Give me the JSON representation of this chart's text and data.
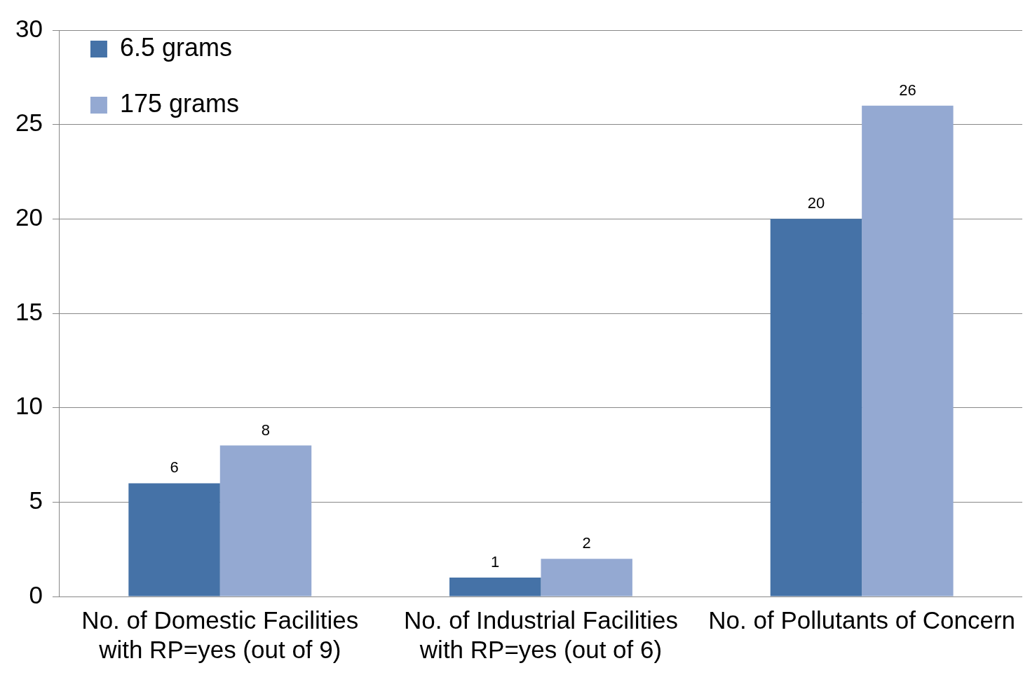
{
  "chart_data": {
    "type": "bar",
    "categories": [
      "No. of Domestic Facilities with RP=yes (out of 9)",
      "No. of Industrial Facilities with RP=yes (out of 6)",
      "No. of Pollutants of Concern"
    ],
    "series": [
      {
        "name": "6.5 grams",
        "color": "#4572a7",
        "values": [
          6,
          1,
          20
        ]
      },
      {
        "name": "175 grams",
        "color": "#94a9d2",
        "values": [
          8,
          2,
          26
        ]
      }
    ],
    "ylim": [
      0,
      30
    ],
    "yticks": [
      0,
      5,
      10,
      15,
      20,
      25,
      30
    ],
    "grid": "y",
    "legend": "top left",
    "data_labels": true
  }
}
